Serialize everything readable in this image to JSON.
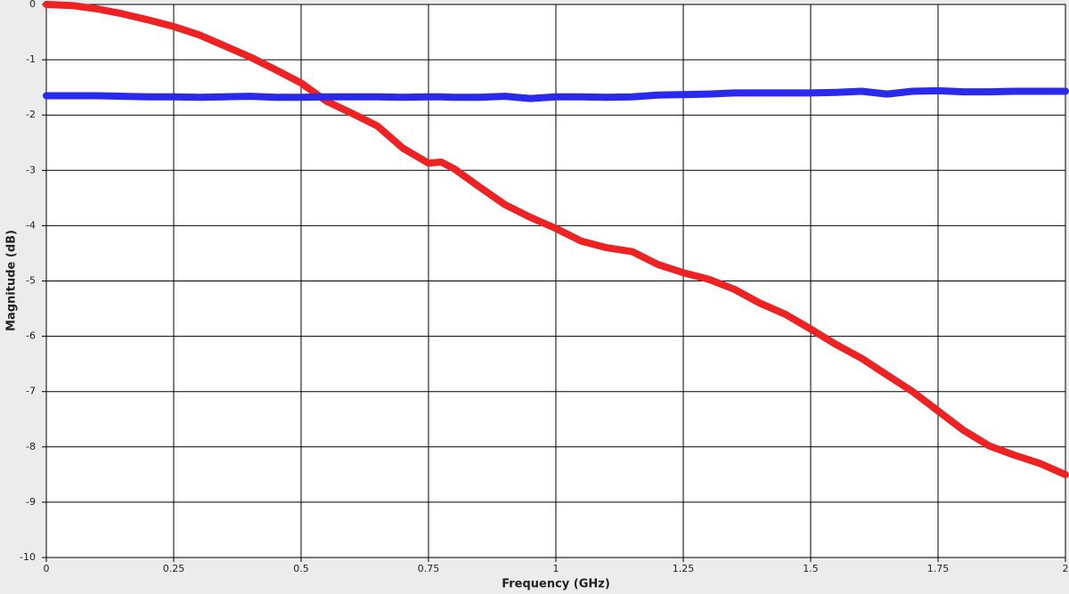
{
  "chart_data": {
    "type": "line",
    "x_label": "Frequency (GHz)",
    "y_label": "Magnitude (dB)",
    "x": [
      0,
      0.05,
      0.1,
      0.15,
      0.2,
      0.25,
      0.3,
      0.35,
      0.4,
      0.45,
      0.5,
      0.55,
      0.6,
      0.65,
      0.7,
      0.75,
      0.775,
      0.8,
      0.85,
      0.9,
      0.95,
      1.0,
      1.05,
      1.1,
      1.15,
      1.2,
      1.25,
      1.3,
      1.35,
      1.4,
      1.45,
      1.5,
      1.55,
      1.6,
      1.65,
      1.7,
      1.75,
      1.8,
      1.85,
      1.9,
      1.95,
      2.0
    ],
    "series": [
      {
        "color": "#ee2222",
        "values": [
          0,
          -0.02,
          -0.08,
          -0.17,
          -0.28,
          -0.4,
          -0.55,
          -0.75,
          -0.95,
          -1.18,
          -1.42,
          -1.75,
          -1.97,
          -2.2,
          -2.6,
          -2.87,
          -2.85,
          -2.97,
          -3.3,
          -3.62,
          -3.85,
          -4.05,
          -4.28,
          -4.4,
          -4.47,
          -4.7,
          -4.85,
          -4.97,
          -5.15,
          -5.4,
          -5.6,
          -5.87,
          -6.15,
          -6.4,
          -6.7,
          -7.0,
          -7.35,
          -7.7,
          -7.98,
          -8.15,
          -8.3,
          -8.5
        ]
      },
      {
        "color": "#2a2aee",
        "values": [
          -1.65,
          -1.65,
          -1.65,
          -1.66,
          -1.67,
          -1.67,
          -1.68,
          -1.67,
          -1.66,
          -1.68,
          -1.68,
          -1.67,
          -1.67,
          -1.67,
          -1.68,
          -1.67,
          -1.67,
          -1.68,
          -1.68,
          -1.66,
          -1.7,
          -1.67,
          -1.67,
          -1.68,
          -1.67,
          -1.64,
          -1.63,
          -1.62,
          -1.6,
          -1.6,
          -1.6,
          -1.6,
          -1.59,
          -1.57,
          -1.62,
          -1.57,
          -1.56,
          -1.58,
          -1.58,
          -1.57,
          -1.57,
          -1.57
        ]
      }
    ],
    "xlim": [
      0,
      2
    ],
    "xticks": [
      0,
      0.25,
      0.5,
      0.75,
      1,
      1.25,
      1.5,
      1.75,
      2
    ],
    "ylim": [
      -10,
      0
    ],
    "yticks": [
      0,
      -1,
      -2,
      -3,
      -4,
      -5,
      -6,
      -7,
      -8,
      -9,
      -10
    ],
    "grid": true
  }
}
